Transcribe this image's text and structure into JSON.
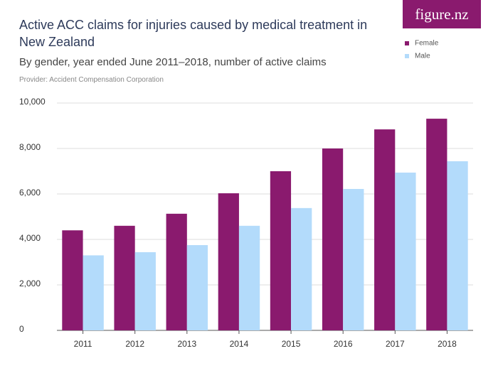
{
  "logo": "figure.nz",
  "chart_data": {
    "type": "bar",
    "title": "Active ACC claims for injuries caused by medical treatment in New Zealand",
    "subtitle": "By gender, year ended June 2011–2018, number of active claims",
    "provider": "Provider: Accident Compensation Corporation",
    "categories": [
      "2011",
      "2012",
      "2013",
      "2014",
      "2015",
      "2016",
      "2017",
      "2018"
    ],
    "series": [
      {
        "name": "Female",
        "color": "#8a1a6e",
        "values": [
          4400,
          4600,
          5130,
          6030,
          7000,
          8000,
          8840,
          9310
        ]
      },
      {
        "name": "Male",
        "color": "#b3dbfb",
        "values": [
          3300,
          3440,
          3750,
          4600,
          5380,
          6220,
          6940,
          7440
        ]
      }
    ],
    "ylim": [
      0,
      10000
    ],
    "yticks": [
      0,
      {
        "value": 2000,
        "label": "2,000"
      },
      {
        "value": 4000,
        "label": "4,000"
      },
      {
        "value": 6000,
        "label": "6,000"
      },
      {
        "value": 8000,
        "label": "8,000"
      },
      {
        "value": 10000,
        "label": "10,000"
      }
    ],
    "grid": true,
    "legend": "top-right"
  }
}
